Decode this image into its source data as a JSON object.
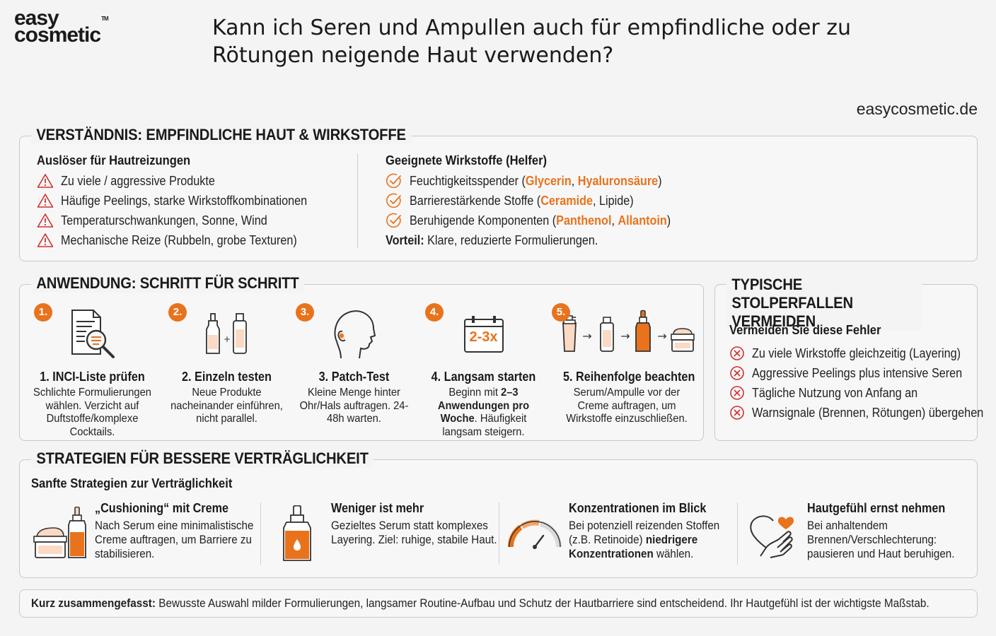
{
  "brand": {
    "line1": "easy",
    "line2": "cosmetic",
    "tm": "TM"
  },
  "title": "Kann ich Seren und Ampullen auch für empfindliche oder zu Rötungen neigende Haut verwenden?",
  "website": "easycosmetic.de",
  "colors": {
    "accent": "#e8731c",
    "text": "#1a1a1a",
    "border": "#c9c9c9"
  },
  "understanding": {
    "heading": "VERSTÄNDNIS: EMPFINDLICHE HAUT & WIRKSTOFFE",
    "triggers": {
      "title": "Auslöser für Hautreizungen",
      "icon": "warning-triangle-icon",
      "items": [
        "Zu viele / aggressive Produkte",
        "Häufige Peelings, starke Wirkstoffkombinationen",
        "Temperaturschwankungen, Sonne, Wind",
        "Mechanische Reize (Rubbeln, grobe Texturen)"
      ]
    },
    "helpers": {
      "title": "Geeignete Wirkstoffe (Helfer)",
      "icon": "check-circle-icon",
      "items": [
        {
          "pre": "Feuchtigkeitsspender (",
          "hl1": "Glycerin",
          "mid": ", ",
          "hl2": "Hyaluronsäure",
          "post": ")"
        },
        {
          "pre": "Barrierestärkende Stoffe (",
          "hl1": "Ceramide",
          "mid": ", Lipide",
          "hl2": "",
          "post": ")"
        },
        {
          "pre": "Beruhigende Komponenten (",
          "hl1": "Panthenol",
          "mid": ", ",
          "hl2": "Allantoin",
          "post": ")"
        }
      ],
      "advantage_label": "Vorteil:",
      "advantage_text": " Klare, reduzierte Formulierungen."
    }
  },
  "application": {
    "heading": "ANWENDUNG: SCHRITT FÜR SCHRITT",
    "steps": [
      {
        "num": "1.",
        "icon": "document-magnifier-icon",
        "title": "1. INCI-Liste prüfen",
        "desc": "Schlichte Formulierungen wählen. Verzicht auf Duftstoffe/komplexe Cocktails."
      },
      {
        "num": "2.",
        "icon": "two-bottles-icon",
        "title": "2. Einzeln testen",
        "desc": "Neue Produkte nacheinander einführen, nicht parallel."
      },
      {
        "num": "3.",
        "icon": "head-profile-icon",
        "title": "3. Patch-Test",
        "desc": "Kleine Menge hinter Ohr/Hals auftragen. 24-48h warten."
      },
      {
        "num": "4.",
        "icon": "calendar-icon",
        "title": "4. Langsam starten",
        "calendar_text": "2-3x",
        "desc_pre": "Beginn mit ",
        "desc_bold1": "2–3",
        "desc_bold2": "Anwendungen pro Woche",
        "desc_post": ". Häufigkeit langsam steigern."
      },
      {
        "num": "5.",
        "icon": "product-sequence-icon",
        "title": "5. Reihenfolge beachten",
        "desc": "Serum/Ampulle vor der Creme auftragen, um Wirkstoffe einzuschließen."
      }
    ]
  },
  "pitfalls": {
    "heading": "TYPISCHE STOLPERFALLEN VERMEIDEN",
    "subtitle": "Vermeiden Sie diese Fehler",
    "icon": "x-circle-icon",
    "items": [
      "Zu viele Wirkstoffe gleichzeitig (Layering)",
      "Aggressive Peelings plus intensive Seren",
      "Tägliche Nutzung von Anfang an",
      "Warnsignale (Brennen, Rötungen) übergehen"
    ]
  },
  "strategies": {
    "heading": "STRATEGIEN FÜR BESSERE VERTRÄGLICHKEIT",
    "subtitle": "Sanfte Strategien zur Verträglichkeit",
    "items": [
      {
        "icon": "cream-jar-dropper-icon",
        "title": "„Cushioning“ mit Creme",
        "desc": "Nach Serum eine minimalistische Creme auftragen, um Barriere zu stabilisieren."
      },
      {
        "icon": "serum-bottle-icon",
        "title": "Weniger ist mehr",
        "desc": "Gezieltes Serum statt komplexes Layering. Ziel: ruhige, stabile Haut."
      },
      {
        "icon": "gauge-icon",
        "title": "Konzentrationen im Blick",
        "desc_pre": "Bei potenziell reizenden Stoffen (z.B. Retinoide) ",
        "desc_bold": "niedrigere Konzentrationen",
        "desc_post": " wählen."
      },
      {
        "icon": "heart-hand-icon",
        "title": "Hautgefühl ernst nehmen",
        "desc": "Bei anhaltendem Brennen/Verschlechterung: pausieren und Haut beruhigen."
      }
    ]
  },
  "summary": {
    "label": "Kurz zusammengefasst:",
    "text": " Bewusste Auswahl milder Formulierungen, langsamer Routine-Aufbau und Schutz der Hautbarriere sind entscheidend. Ihr Hautgefühl ist der wichtigste Maßstab."
  }
}
